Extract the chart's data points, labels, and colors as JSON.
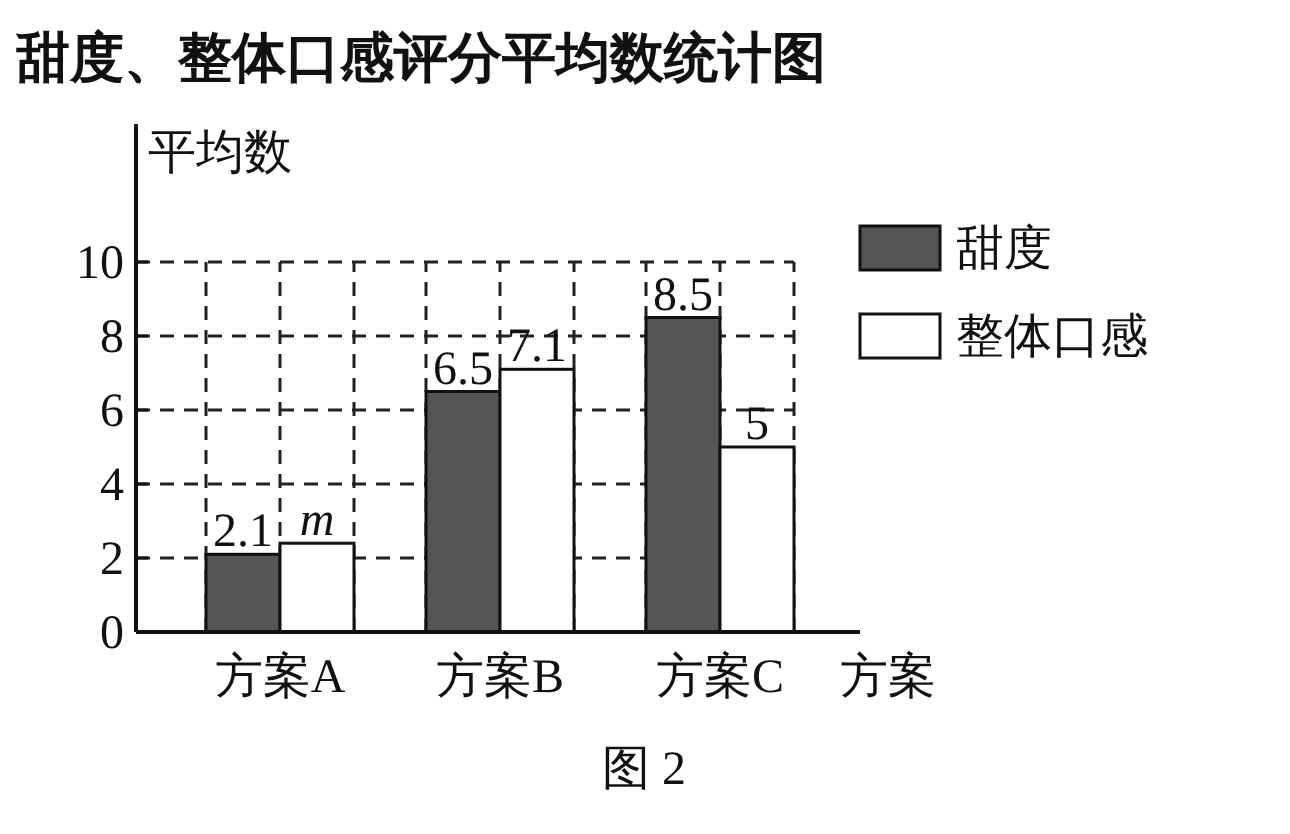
{
  "chart_data": {
    "type": "bar",
    "title": "甜度、整体口感评分平均数统计图",
    "xlabel": "方案",
    "ylabel": "平均数",
    "categories": [
      "方案A",
      "方案B",
      "方案C"
    ],
    "series": [
      {
        "name": "甜度",
        "color": "#555555",
        "values": [
          2.1,
          6.5,
          8.5
        ],
        "value_labels": [
          "2.1",
          "6.5",
          "8.5"
        ]
      },
      {
        "name": "整体口感",
        "color": "#ffffff",
        "values": [
          2.4,
          7.1,
          5
        ],
        "value_labels": [
          "m",
          "7.1",
          "5"
        ]
      }
    ],
    "ylim": [
      0,
      10
    ],
    "yticks": [
      0,
      2,
      4,
      6,
      8,
      10
    ],
    "grid": true,
    "legend": "right",
    "annotations": [
      "图 2"
    ]
  }
}
